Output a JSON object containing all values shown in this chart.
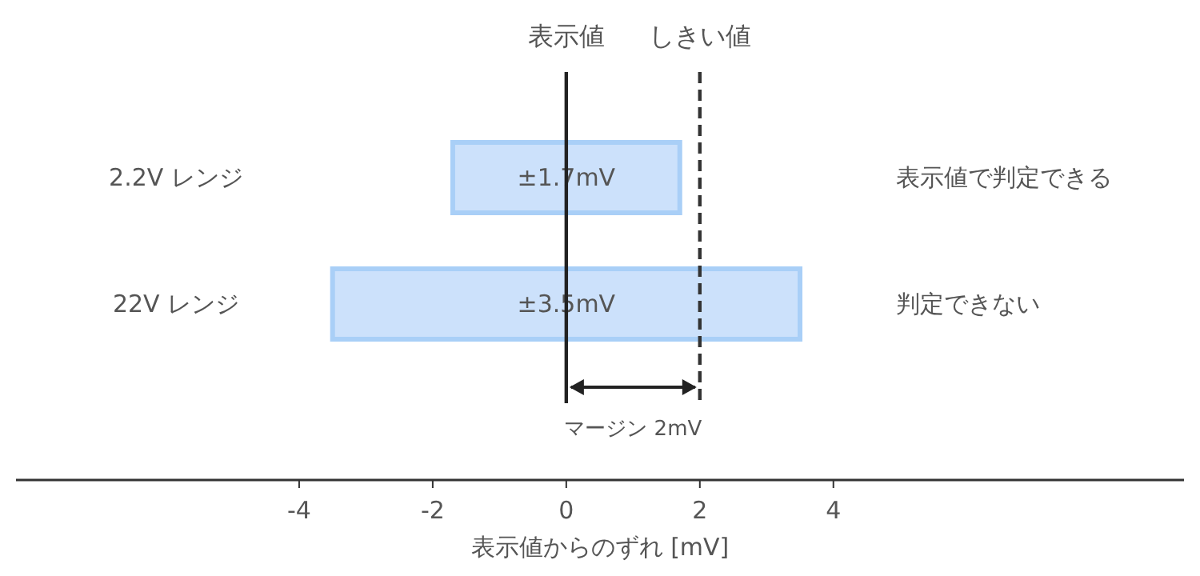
{
  "chart_data": {
    "type": "bar",
    "orientation": "horizontal",
    "categories": [
      "2.2V レンジ",
      "22V レンジ"
    ],
    "base": [
      -1.7,
      -3.5
    ],
    "values": [
      3.4,
      7.0
    ],
    "value_labels": [
      "±1.7mV",
      "±3.5mV"
    ],
    "color": "#cce1fb",
    "xlim": [
      -8.24,
      9.25
    ],
    "xticks": [
      {
        "value": -4,
        "label": "-4"
      },
      {
        "value": -2,
        "label": "-2"
      },
      0,
      2,
      4
    ],
    "xlabel": "表示値からのずれ [mV]",
    "ref_lines": [
      {
        "axis": "x",
        "value": 0,
        "label": "表示値",
        "color": "#222222",
        "line_style": "solid"
      },
      {
        "axis": "x",
        "value": 2,
        "label": "しきい値",
        "color": "#333333",
        "line_style": "dashed"
      }
    ],
    "annotations": [
      "表示値で判定できる",
      "判定できない",
      "マージン 2mV"
    ]
  }
}
